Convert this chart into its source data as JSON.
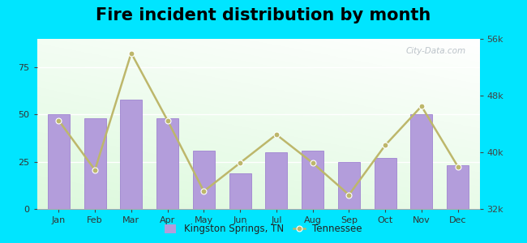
{
  "title": "Fire incident distribution by month",
  "months": [
    "Jan",
    "Feb",
    "Mar",
    "Apr",
    "May",
    "Jun",
    "Jul",
    "Aug",
    "Sep",
    "Oct",
    "Nov",
    "Dec"
  ],
  "bar_values": [
    50,
    48,
    58,
    48,
    31,
    19,
    30,
    31,
    25,
    27,
    50,
    23
  ],
  "line_values_right": [
    44500,
    37500,
    54000,
    44500,
    34500,
    38500,
    42500,
    38500,
    34000,
    41000,
    46500,
    38000
  ],
  "bar_color": "#b39ddb",
  "line_color": "#bdb76b",
  "bar_edge_color": "#9575cd",
  "background_outer": "#00e5ff",
  "ylim_left": [
    0,
    90
  ],
  "ylim_right": [
    32000,
    56000
  ],
  "yticks_left": [
    0,
    25,
    50,
    75
  ],
  "yticks_right": [
    32000,
    40000,
    48000,
    56000
  ],
  "ytick_labels_right": [
    "32k",
    "40k",
    "48k",
    "56k"
  ],
  "title_fontsize": 15,
  "legend_bar_label": "Kingston Springs, TN",
  "legend_line_label": "Tennessee",
  "watermark": "City-Data.com"
}
